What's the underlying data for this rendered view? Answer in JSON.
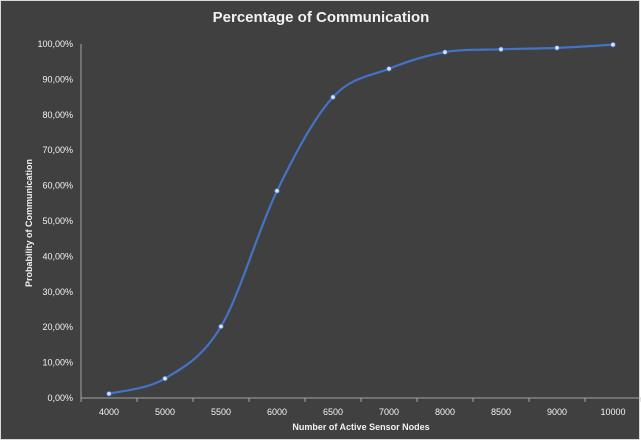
{
  "chart_data": {
    "type": "line",
    "title": "Percentage of Communication",
    "xlabel": "Number of Active Sensor Nodes",
    "ylabel": "Probability of Communication",
    "categories": [
      "4000",
      "5000",
      "5500",
      "6000",
      "6500",
      "7000",
      "8000",
      "8500",
      "9000",
      "10000"
    ],
    "y_ticks": [
      "0,00%",
      "10,00%",
      "20,00%",
      "30,00%",
      "40,00%",
      "50,00%",
      "60,00%",
      "70,00%",
      "80,00%",
      "90,00%",
      "100,00%"
    ],
    "series": [
      {
        "values": [
          1.2,
          5.5,
          20.2,
          58.5,
          85.0,
          93.0,
          97.7,
          98.5,
          98.9,
          99.8
        ]
      }
    ],
    "ylim": [
      0,
      100
    ],
    "grid": false,
    "colors": {
      "background": "#404040",
      "line": "#4472c4",
      "text": "#f2f2f2",
      "axis": "#bfbfbf",
      "marker": "#d6e3f5"
    }
  }
}
